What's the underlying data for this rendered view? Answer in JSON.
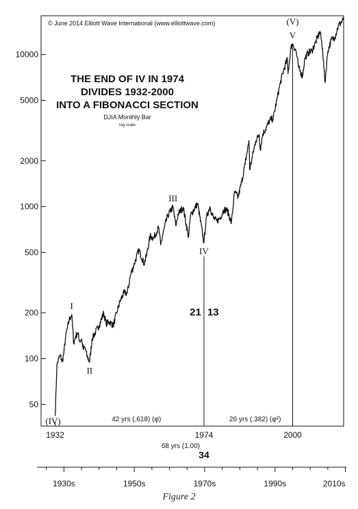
{
  "chart_data": {
    "type": "line",
    "title_lines": [
      "THE END OF IV IN 1974",
      "DIVIDES 1932-2000",
      "INTO A FIBONACCI SECTION"
    ],
    "subtitle": "DJIA Monthly Bar",
    "scale_note": "log scale",
    "copyright": "© June 2014 Elliott Wave International (www.elliottwave.com)",
    "y_scale": "log",
    "ylim": [
      36,
      18000
    ],
    "xlim": [
      1928.5,
      2014.5
    ],
    "y_ticks": [
      {
        "value": 50,
        "label": "50"
      },
      {
        "value": 100,
        "label": "100"
      },
      {
        "value": 200,
        "label": "200"
      },
      {
        "value": 500,
        "label": "500"
      },
      {
        "value": 1000,
        "label": "1000"
      },
      {
        "value": 2000,
        "label": "2000"
      },
      {
        "value": 5000,
        "label": "5000"
      },
      {
        "value": 10000,
        "label": "10000"
      }
    ],
    "x_ticks": [
      {
        "value": 1935,
        "label": "1930s"
      },
      {
        "value": 1955,
        "label": "1950s"
      },
      {
        "value": 1975,
        "label": "1970s"
      },
      {
        "value": 1995,
        "label": "1990s"
      },
      {
        "value": 2015,
        "label": "2010s"
      }
    ],
    "x_minor_ticks": [
      1930,
      1940,
      1945,
      1950,
      1960,
      1965,
      1970,
      1980,
      1985,
      1990,
      2000,
      2005,
      2010
    ],
    "series": [
      {
        "x": [
          1932.5,
          1933.0,
          1933.5,
          1934.0,
          1934.5,
          1935.0,
          1935.5,
          1936.0,
          1936.5,
          1937.2,
          1937.8,
          1938.3,
          1938.9,
          1939.5,
          1940.0,
          1940.5,
          1941.0,
          1941.5,
          1942.3,
          1943.0,
          1944.0,
          1945.0,
          1946.3,
          1947.0,
          1948.0,
          1949.0,
          1950.0,
          1951.0,
          1952.0,
          1953.0,
          1954.0,
          1955.0,
          1956.3,
          1957.8,
          1958.5,
          1959.5,
          1960.5,
          1961.9,
          1962.5,
          1963.5,
          1964.5,
          1966.0,
          1966.8,
          1967.5,
          1968.9,
          1970.4,
          1971.0,
          1973.0,
          1974.8,
          1975.5,
          1976.5,
          1977.5,
          1978.5,
          1979.5,
          1980.5,
          1981.5,
          1982.6,
          1983.5,
          1984.5,
          1985.5,
          1986.5,
          1987.6,
          1987.8,
          1988.5,
          1989.5,
          1990.5,
          1990.8,
          1991.5,
          1992.5,
          1993.5,
          1994.5,
          1995.5,
          1996.5,
          1997.5,
          1998.5,
          1998.7,
          1999.5,
          2000.0,
          2001.0,
          2001.7,
          2002.8,
          2003.5,
          2004.5,
          2005.5,
          2006.5,
          2007.8,
          2008.5,
          2009.2,
          2010.0,
          2011.0,
          2012.0,
          2013.0,
          2014.4
        ],
        "values": [
          42,
          90,
          100,
          105,
          95,
          110,
          140,
          160,
          180,
          195,
          125,
          140,
          148,
          130,
          135,
          115,
          118,
          105,
          95,
          135,
          150,
          165,
          200,
          170,
          175,
          165,
          200,
          240,
          270,
          270,
          360,
          420,
          520,
          420,
          480,
          640,
          620,
          730,
          560,
          720,
          870,
          995,
          750,
          900,
          990,
          632,
          880,
          1050,
          580,
          850,
          1000,
          840,
          800,
          850,
          960,
          940,
          780,
          1250,
          1150,
          1450,
          1900,
          2720,
          1750,
          2100,
          2700,
          2990,
          2365,
          3000,
          3300,
          3700,
          3800,
          5000,
          6500,
          8000,
          9300,
          7500,
          11000,
          11750,
          10500,
          8200,
          7200,
          9500,
          10300,
          10600,
          12000,
          14200,
          11000,
          6550,
          10500,
          12500,
          13000,
          15500,
          16900
        ]
      }
    ],
    "wave_labels": [
      {
        "label": "(IV)",
        "x": 1932.5,
        "y": 42,
        "pos": "below-left"
      },
      {
        "label": "I",
        "x": 1937.2,
        "y": 195,
        "pos": "above"
      },
      {
        "label": "II",
        "x": 1942.3,
        "y": 95,
        "pos": "below"
      },
      {
        "label": "III",
        "x": 1966.0,
        "y": 995,
        "pos": "above"
      },
      {
        "label": "IV",
        "x": 1974.8,
        "y": 580,
        "pos": "below"
      },
      {
        "label": "V",
        "x": 2000.0,
        "y": 11750,
        "pos": "above"
      },
      {
        "label": "(V)",
        "x": 2000.0,
        "y": 11750,
        "pos": "above-far"
      }
    ],
    "fibonacci": {
      "left_number": "21",
      "right_number": "13",
      "total_number": "34",
      "start": {
        "x": 1932.5,
        "label": "1932"
      },
      "mid": {
        "x": 1974.8,
        "label": "1974",
        "line_top_value": 470
      },
      "end": {
        "x": 2000.0,
        "label": "2000",
        "line_top_value": 11000
      },
      "left_span_label": "42 yrs (.618)  (φ)",
      "right_span_label": "26 yrs (.382) (φ²)",
      "total_span_label": "68 yrs (1.00)"
    },
    "grid": false,
    "legend": "none"
  },
  "caption": "Figure 2"
}
